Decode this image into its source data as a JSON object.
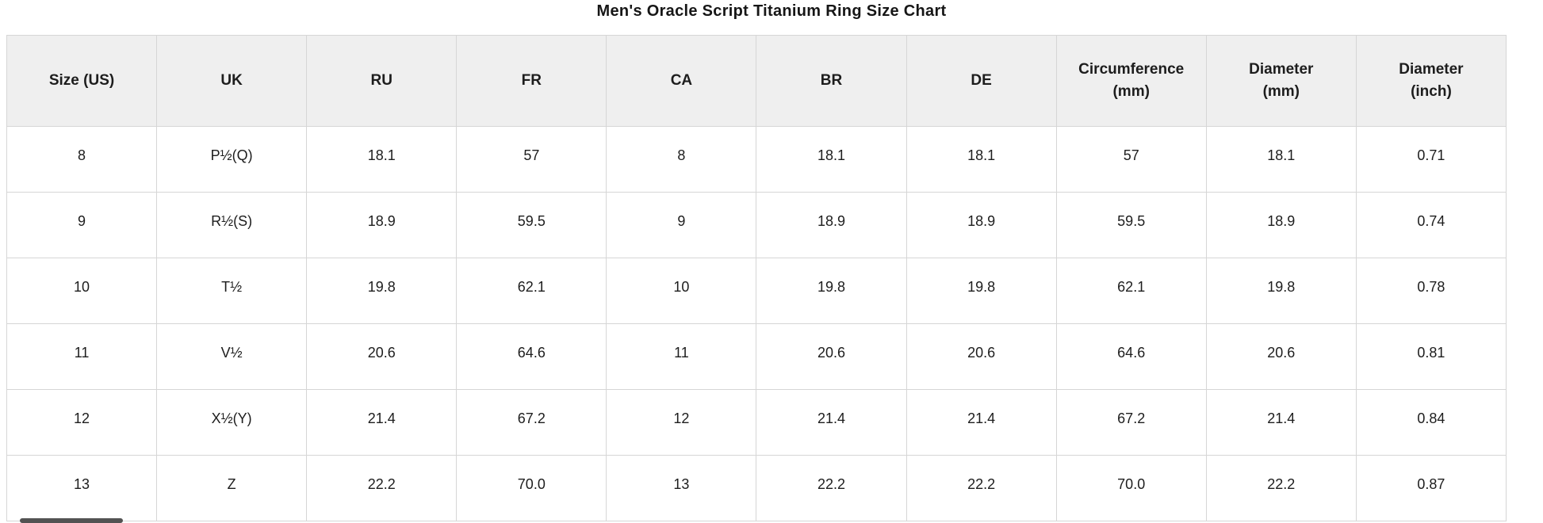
{
  "colors": {
    "header_bg": "#efefef",
    "border": "#d6d6d6",
    "text": "#1d1d1d",
    "title": "#161616",
    "scrollbar_thumb": "#525252",
    "page_bg": "#ffffff"
  },
  "chart_data": {
    "type": "table",
    "title": "Men's Oracle Script Titanium Ring Size Chart",
    "columns": [
      {
        "label": "Size (US)",
        "lines": [
          "Size (US)"
        ]
      },
      {
        "label": "UK",
        "lines": [
          "UK"
        ]
      },
      {
        "label": "RU",
        "lines": [
          "RU"
        ]
      },
      {
        "label": "FR",
        "lines": [
          "FR"
        ]
      },
      {
        "label": "CA",
        "lines": [
          "CA"
        ]
      },
      {
        "label": "BR",
        "lines": [
          "BR"
        ]
      },
      {
        "label": "DE",
        "lines": [
          "DE"
        ]
      },
      {
        "label": "Circumference (mm)",
        "lines": [
          "Circumference",
          "(mm)"
        ]
      },
      {
        "label": "Diameter (mm)",
        "lines": [
          "Diameter",
          "(mm)"
        ]
      },
      {
        "label": "Diameter (inch)",
        "lines": [
          "Diameter",
          "(inch)"
        ]
      }
    ],
    "rows": [
      [
        "8",
        "P½(Q)",
        "18.1",
        "57",
        "8",
        "18.1",
        "18.1",
        "57",
        "18.1",
        "0.71"
      ],
      [
        "9",
        "R½(S)",
        "18.9",
        "59.5",
        "9",
        "18.9",
        "18.9",
        "59.5",
        "18.9",
        "0.74"
      ],
      [
        "10",
        "T½",
        "19.8",
        "62.1",
        "10",
        "19.8",
        "19.8",
        "62.1",
        "19.8",
        "0.78"
      ],
      [
        "11",
        "V½",
        "20.6",
        "64.6",
        "11",
        "20.6",
        "20.6",
        "64.6",
        "20.6",
        "0.81"
      ],
      [
        "12",
        "X½(Y)",
        "21.4",
        "67.2",
        "12",
        "21.4",
        "21.4",
        "67.2",
        "21.4",
        "0.84"
      ],
      [
        "13",
        "Z",
        "22.2",
        "70.0",
        "13",
        "22.2",
        "22.2",
        "70.0",
        "22.2",
        "0.87"
      ]
    ]
  }
}
